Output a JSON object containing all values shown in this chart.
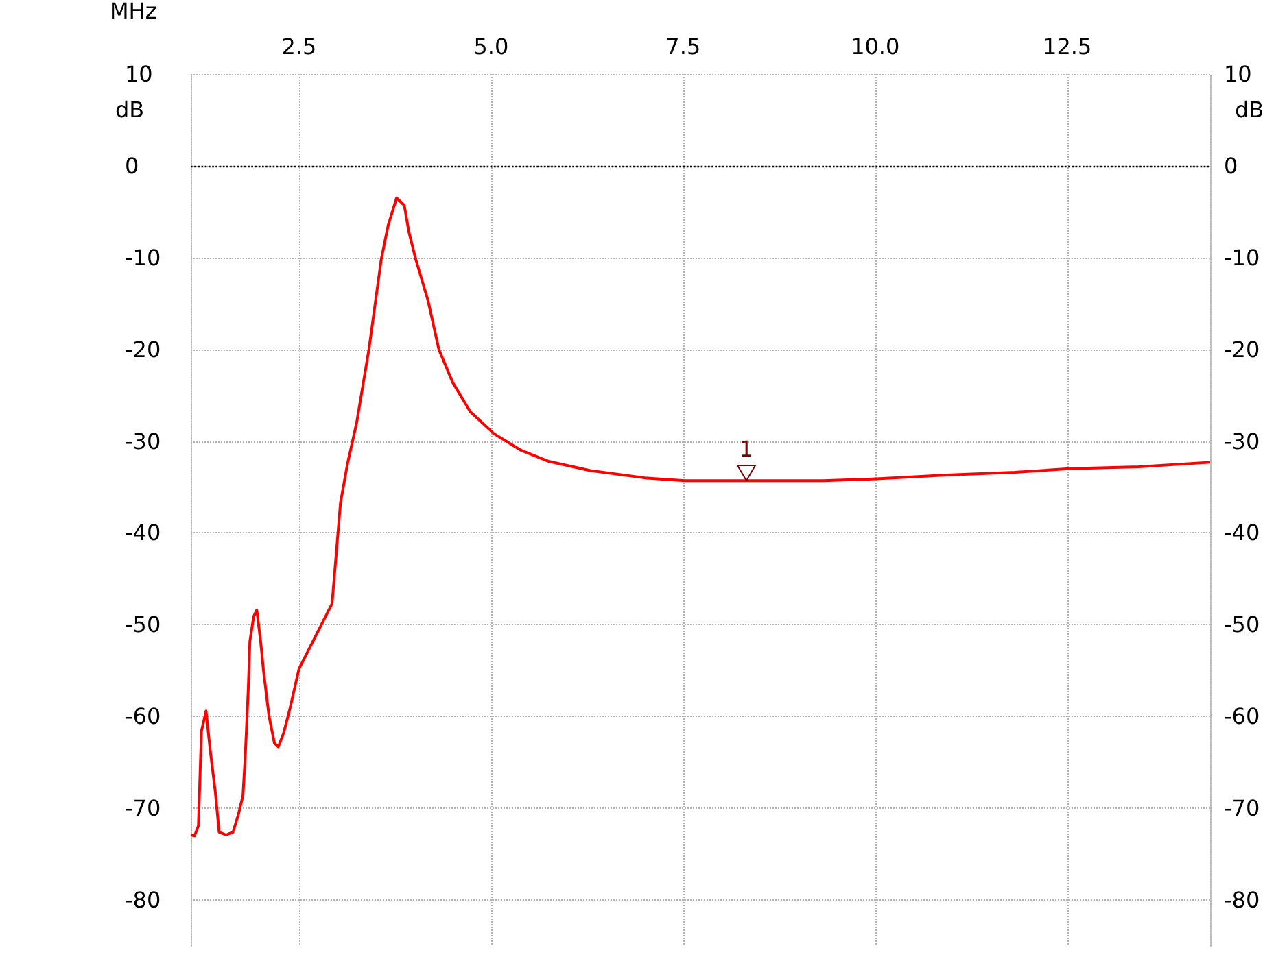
{
  "chart_data": {
    "type": "line",
    "xlabel": "MHz",
    "ylabel": "dB",
    "y2label": "dB",
    "xlim": [
      1.09,
      14.36
    ],
    "xticks": [
      2.5,
      {
        "value": 5,
        "label": "5.0"
      },
      7.5,
      {
        "value": 10,
        "label": "10.0"
      },
      12.5
    ],
    "ylim": [
      -85,
      10
    ],
    "yticks": [
      10,
      0,
      -10,
      -20,
      -30,
      -40,
      -50,
      -60,
      -70,
      -80
    ],
    "y2lim": [
      -85,
      10
    ],
    "y2ticks": [
      10,
      0,
      -10,
      -20,
      -30,
      -40,
      -50,
      -60,
      -70,
      -80
    ],
    "grid": true,
    "ref_lines": [
      {
        "axis": "y",
        "value": 0,
        "color": "#000000",
        "line_style": "dotted"
      }
    ],
    "annotations": [
      {
        "text": "1",
        "x": 8.32,
        "y": -34.3
      }
    ],
    "series": [
      {
        "color": "#ff0000",
        "x": [
          1.09,
          1.14,
          1.19,
          1.23,
          1.29,
          1.34,
          1.41,
          1.46,
          1.55,
          1.64,
          1.71,
          1.77,
          1.8,
          1.84,
          1.86,
          1.91,
          1.95,
          2.0,
          2.04,
          2.11,
          2.18,
          2.23,
          2.3,
          2.38,
          2.5,
          2.93,
          3.04,
          3.13,
          3.25,
          3.41,
          3.57,
          3.66,
          3.77,
          3.87,
          3.93,
          4.02,
          4.18,
          4.32,
          4.5,
          4.73,
          5.04,
          5.39,
          5.75,
          6.29,
          7.0,
          7.52,
          8.32,
          9.32,
          10.02,
          10.93,
          11.82,
          12.52,
          13.43,
          14.36
        ],
        "values": [
          -72.9,
          -73,
          -71.9,
          -61.6,
          -59.4,
          -63.4,
          -68.2,
          -72.6,
          -72.9,
          -72.6,
          -70.7,
          -68.6,
          -64.3,
          -56.9,
          -51.8,
          -49.1,
          -48.4,
          -51.8,
          -55.2,
          -60,
          -62.9,
          -63.3,
          -61.8,
          -59.2,
          -54.8,
          -47.7,
          -36.7,
          -32.5,
          -28,
          -20,
          -10.2,
          -6.5,
          -3.5,
          -4.3,
          -7.2,
          -10.2,
          -14.7,
          -20,
          -23.6,
          -26.8,
          -29.2,
          -31,
          -32.2,
          -33.2,
          -34,
          -34.3,
          -34.3,
          -34.3,
          -34.1,
          -33.7,
          -33.4,
          -33,
          -32.8,
          -32.3
        ]
      }
    ]
  }
}
